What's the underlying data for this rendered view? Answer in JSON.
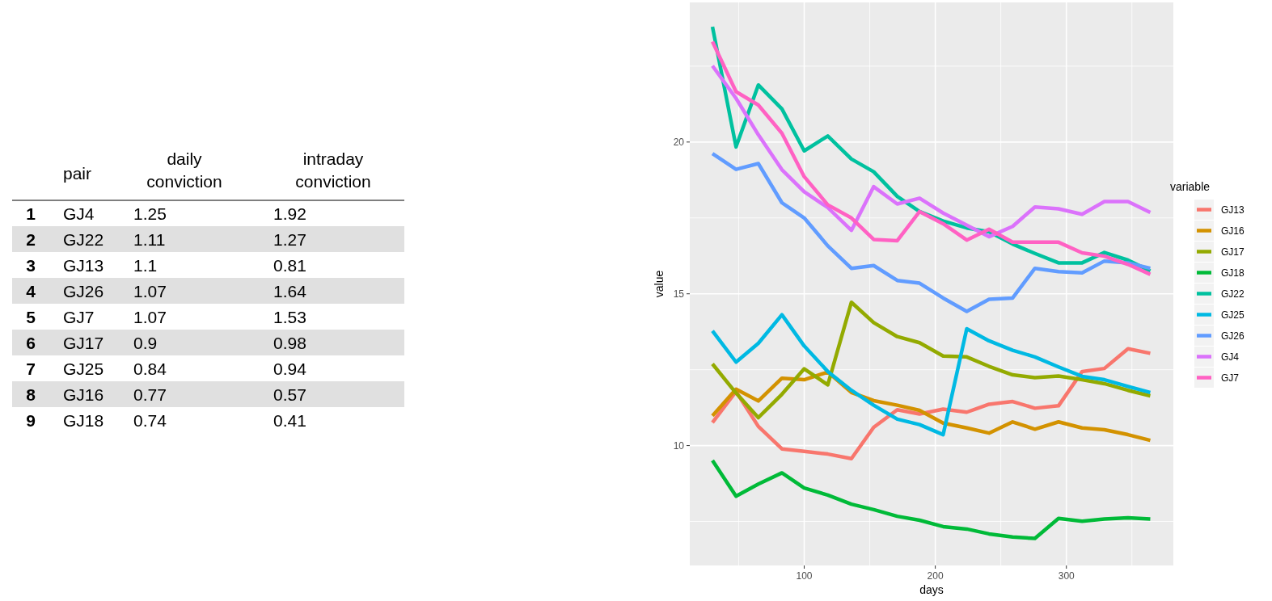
{
  "chart_data": [
    {
      "type": "other",
      "xlabel": "pair",
      "categories": [
        "GJ4",
        "GJ22",
        "GJ13",
        "GJ26",
        "GJ7",
        "GJ17",
        "GJ25",
        "GJ16",
        "GJ18"
      ],
      "series": [
        {
          "values": [
            1,
            2,
            3,
            4,
            5,
            6,
            7,
            8,
            9
          ]
        },
        {
          "name": "daily conviction",
          "values": [
            1.25,
            1.11,
            1.1,
            1.07,
            1.07,
            0.9,
            0.84,
            0.77,
            0.74
          ]
        },
        {
          "name": "intraday conviction",
          "values": [
            1.92,
            1.27,
            0.81,
            1.64,
            1.53,
            0.98,
            0.94,
            0.57,
            0.41
          ]
        }
      ],
      "data_labels": true
    },
    {
      "type": "line",
      "xlabel": "days",
      "ylabel": "value",
      "legend_title": "variable",
      "legend": "right",
      "grid": true,
      "x": [
        30,
        48,
        65,
        83,
        100,
        118,
        136,
        153,
        171,
        188,
        206,
        224,
        241,
        259,
        276,
        294,
        312,
        329,
        347,
        364
      ],
      "xlim": [
        12.7,
        381.6
      ],
      "xticks": [
        100,
        200,
        300
      ],
      "ylim": [
        6.05,
        24.6
      ],
      "yticks": [
        10,
        15,
        20
      ],
      "series": [
        {
          "name": "GJ13",
          "color": "#f8766d",
          "values": [
            10.76,
            11.78,
            10.63,
            9.89,
            9.81,
            9.72,
            9.57,
            10.6,
            11.18,
            11.04,
            11.2,
            11.1,
            11.36,
            11.45,
            11.23,
            11.31,
            12.44,
            12.54,
            13.19,
            13.04
          ]
        },
        {
          "name": "GJ16",
          "color": "#d39200",
          "values": [
            10.98,
            11.86,
            11.47,
            12.22,
            12.17,
            12.42,
            11.75,
            11.48,
            11.33,
            11.16,
            10.74,
            10.58,
            10.41,
            10.78,
            10.54,
            10.78,
            10.58,
            10.52,
            10.36,
            10.17
          ]
        },
        {
          "name": "GJ17",
          "color": "#93aa00",
          "values": [
            12.69,
            11.73,
            10.92,
            11.69,
            12.53,
            12.0,
            14.72,
            14.05,
            13.59,
            13.39,
            12.95,
            12.92,
            12.61,
            12.33,
            12.24,
            12.29,
            12.17,
            12.04,
            11.82,
            11.64
          ]
        },
        {
          "name": "GJ18",
          "color": "#00ba38",
          "values": [
            9.51,
            8.33,
            8.73,
            9.1,
            8.6,
            8.37,
            8.07,
            7.89,
            7.67,
            7.54,
            7.33,
            7.25,
            7.09,
            6.99,
            6.94,
            7.6,
            7.51,
            7.58,
            7.62,
            7.58
          ]
        },
        {
          "name": "GJ22",
          "color": "#00c19f",
          "values": [
            23.8,
            19.84,
            21.88,
            21.09,
            19.71,
            20.2,
            19.44,
            19.02,
            18.21,
            17.71,
            17.4,
            17.17,
            17.04,
            16.64,
            16.33,
            16.02,
            16.02,
            16.36,
            16.11,
            15.75
          ]
        },
        {
          "name": "GJ25",
          "color": "#00b9e3",
          "values": [
            13.78,
            12.75,
            13.37,
            14.31,
            13.28,
            12.44,
            11.82,
            11.33,
            10.87,
            10.69,
            10.36,
            13.85,
            13.45,
            13.14,
            12.92,
            12.59,
            12.28,
            12.17,
            11.95,
            11.75
          ]
        },
        {
          "name": "GJ26",
          "color": "#619cff",
          "values": [
            19.62,
            19.1,
            19.29,
            18.0,
            17.5,
            16.58,
            15.84,
            15.93,
            15.44,
            15.35,
            14.86,
            14.42,
            14.82,
            14.86,
            15.84,
            15.73,
            15.69,
            16.08,
            16.02,
            15.84
          ]
        },
        {
          "name": "GJ4",
          "color": "#db72fb",
          "values": [
            22.51,
            21.44,
            20.24,
            19.09,
            18.36,
            17.84,
            17.09,
            18.53,
            17.96,
            18.15,
            17.66,
            17.26,
            16.88,
            17.22,
            17.86,
            17.8,
            17.62,
            18.04,
            18.04,
            17.68
          ]
        },
        {
          "name": "GJ7",
          "color": "#ff61c3",
          "values": [
            23.31,
            21.66,
            21.22,
            20.29,
            18.86,
            17.93,
            17.5,
            16.79,
            16.75,
            17.71,
            17.31,
            16.77,
            17.13,
            16.7,
            16.7,
            16.7,
            16.35,
            16.24,
            15.97,
            15.64
          ]
        }
      ]
    }
  ]
}
